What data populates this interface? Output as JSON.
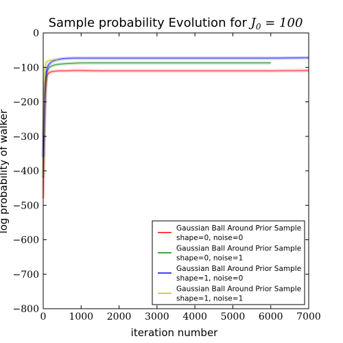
{
  "chart_data": {
    "type": "line",
    "title_prefix": "Sample probability Evolution for ",
    "title_math": "J",
    "title_math_sub": "0",
    "title_math_rest": " = 100",
    "xlabel": "iteration number",
    "ylabel": "log probability of walker",
    "xlim": [
      0,
      7000
    ],
    "ylim": [
      -800,
      0
    ],
    "xticks": [
      0,
      1000,
      2000,
      3000,
      4000,
      5000,
      6000,
      7000
    ],
    "yticks": [
      0,
      -100,
      -200,
      -300,
      -400,
      -500,
      -600,
      -700,
      -800
    ],
    "xtick_labels": [
      "0",
      "1000",
      "2000",
      "3000",
      "4000",
      "5000",
      "6000",
      "7000"
    ],
    "ytick_labels": [
      "0",
      "−100",
      "−200",
      "−300",
      "−400",
      "−500",
      "−600",
      "−700",
      "−800"
    ],
    "grid": false,
    "legend_position": "lower-right",
    "series": [
      {
        "name": "Gaussian Ball Around Prior Sample\nshape=0, noise=0",
        "legend_line1": "Gaussian Ball Around Prior Sample",
        "legend_line2": "shape=0, noise=0",
        "color": "#ff0000",
        "x": [
          0,
          20,
          40,
          60,
          80,
          100,
          130,
          160,
          200,
          250,
          300,
          400,
          500,
          600,
          800,
          1000,
          1500,
          2000,
          3000,
          4000,
          5000,
          6000,
          7000
        ],
        "y": [
          -480,
          -330,
          -230,
          -170,
          -140,
          -125,
          -118,
          -115,
          -113,
          -112,
          -111,
          -110,
          -110,
          -110,
          -109,
          -109,
          -110,
          -110,
          -110,
          -110,
          -110,
          -110,
          -109
        ]
      },
      {
        "name": "Gaussian Ball Around Prior Sample\nshape=0, noise=1",
        "legend_line1": "Gaussian Ball Around Prior Sample",
        "legend_line2": "shape=0, noise=1",
        "color": "#008000",
        "x": [
          0,
          20,
          40,
          60,
          80,
          100,
          130,
          160,
          200,
          250,
          300,
          400,
          500,
          600,
          800,
          1000,
          1500,
          2000,
          3000,
          4000,
          5000,
          6000
        ],
        "y": [
          -420,
          -300,
          -200,
          -150,
          -125,
          -113,
          -105,
          -100,
          -97,
          -95,
          -93,
          -91,
          -90,
          -89,
          -88,
          -87,
          -87,
          -87,
          -87,
          -87,
          -87,
          -87
        ]
      },
      {
        "name": "Gaussian Ball Around Prior Sample\nshape=1, noise=0",
        "legend_line1": "Gaussian Ball Around Prior Sample",
        "legend_line2": "shape=1, noise=0",
        "color": "#0000ff",
        "x": [
          0,
          20,
          40,
          60,
          80,
          100,
          130,
          160,
          200,
          250,
          300,
          400,
          500,
          600,
          800,
          1000,
          1500,
          2000,
          3000,
          4000,
          5000,
          6000,
          7000
        ],
        "y": [
          -360,
          -260,
          -180,
          -140,
          -115,
          -103,
          -95,
          -90,
          -86,
          -82,
          -80,
          -77,
          -75,
          -74,
          -73,
          -73,
          -73,
          -73,
          -73,
          -73,
          -73,
          -73,
          -72
        ]
      },
      {
        "name": "Gaussian Ball Around Prior Sample\nshape=1, noise=1",
        "legend_line1": "Gaussian Ball Around Prior Sample",
        "legend_line2": "shape=1, noise=1",
        "color": "#bfbf00",
        "x": [
          0,
          20,
          40,
          60,
          80,
          100,
          130,
          160,
          200,
          250,
          300,
          350,
          400
        ],
        "y": [
          -300,
          -170,
          -110,
          -92,
          -86,
          -83,
          -81,
          -80,
          -79,
          -79,
          -78,
          -78,
          -78
        ]
      }
    ]
  }
}
